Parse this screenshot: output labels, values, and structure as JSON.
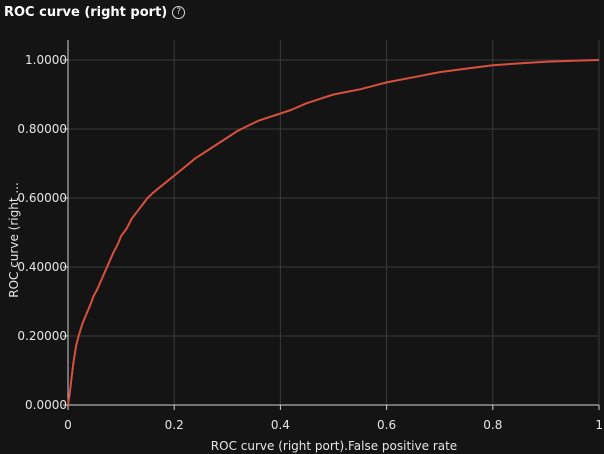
{
  "panel": {
    "title": "ROC curve (right port)",
    "help_icon": "question-circle-icon"
  },
  "chart_data": {
    "type": "line",
    "title": "ROC curve (right port)",
    "xlabel": "ROC curve (right port).False positive rate",
    "ylabel": "ROC curve (right ...",
    "xlim": [
      0,
      1
    ],
    "ylim": [
      0,
      1
    ],
    "grid": true,
    "x_ticks": [
      0,
      0.2,
      0.4,
      0.6,
      0.8,
      1
    ],
    "x_tick_labels": [
      "0",
      "0.2",
      "0.4",
      "0.6",
      "0.8",
      "1"
    ],
    "y_ticks": [
      0,
      0.2,
      0.4,
      0.6,
      0.8,
      1.0
    ],
    "y_tick_labels": [
      "0.0000",
      "0.20000",
      "0.40000",
      "0.60000",
      "0.80000",
      "1.0000"
    ],
    "series": [
      {
        "color": "#d9503f",
        "x": [
          0,
          0.003,
          0.006,
          0.01,
          0.015,
          0.02,
          0.027,
          0.035,
          0.042,
          0.048,
          0.055,
          0.065,
          0.075,
          0.085,
          0.095,
          0.1,
          0.11,
          0.12,
          0.13,
          0.14,
          0.15,
          0.16,
          0.18,
          0.2,
          0.22,
          0.24,
          0.26,
          0.28,
          0.3,
          0.32,
          0.34,
          0.36,
          0.38,
          0.4,
          0.42,
          0.45,
          0.48,
          0.5,
          0.55,
          0.6,
          0.65,
          0.7,
          0.75,
          0.8,
          0.85,
          0.9,
          0.95,
          1.0
        ],
        "y": [
          0,
          0.03,
          0.07,
          0.12,
          0.17,
          0.2,
          0.235,
          0.265,
          0.29,
          0.315,
          0.335,
          0.37,
          0.405,
          0.44,
          0.47,
          0.49,
          0.51,
          0.54,
          0.56,
          0.58,
          0.6,
          0.615,
          0.64,
          0.665,
          0.69,
          0.715,
          0.735,
          0.755,
          0.775,
          0.795,
          0.81,
          0.825,
          0.835,
          0.845,
          0.855,
          0.875,
          0.89,
          0.9,
          0.915,
          0.935,
          0.95,
          0.965,
          0.975,
          0.985,
          0.99,
          0.995,
          0.998,
          1.0
        ]
      }
    ]
  }
}
